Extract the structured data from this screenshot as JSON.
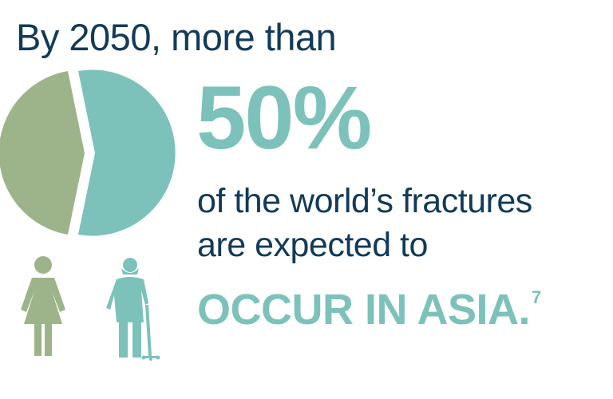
{
  "headline": {
    "intro": "By 2050, more than",
    "percentage": "50%",
    "line1": "of the world’s fractures",
    "line2": "are expected to",
    "emphasis": "OCCUR IN ASIA.",
    "footnote": "7"
  },
  "pie": {
    "segments": [
      {
        "share": 50,
        "color": "#7cc2ba"
      },
      {
        "share": 50,
        "color": "#9db48a"
      }
    ]
  },
  "icons": [
    "woman-icon",
    "elderly-person-with-cane-icon"
  ],
  "colors": {
    "navy": "#123a5a",
    "teal": "#7cc2ba",
    "sage": "#9db48a"
  }
}
